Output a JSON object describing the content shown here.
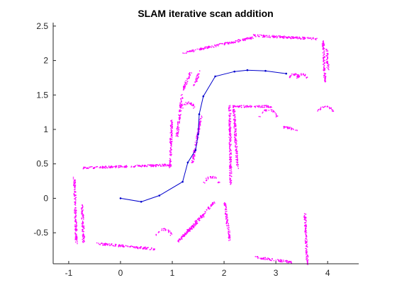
{
  "chart_data": {
    "type": "scatter",
    "title": "SLAM iterative scan addition",
    "xlabel": "",
    "ylabel": "",
    "xlim": [
      -1.3,
      4.6
    ],
    "ylim": [
      -0.95,
      2.55
    ],
    "xticks": [
      -1,
      0,
      1,
      2,
      3,
      4
    ],
    "yticks": [
      -0.5,
      0,
      0.5,
      1,
      1.5,
      2,
      2.5
    ],
    "grid": false,
    "legend": "none",
    "colors": {
      "scan": "#ff00ff",
      "trajectory": "#0000cc",
      "axes": "#262626"
    },
    "trajectory": {
      "x": [
        0.0,
        0.4,
        0.75,
        1.2,
        1.3,
        1.45,
        1.5,
        1.52,
        1.6,
        1.83,
        2.2,
        2.45,
        2.8,
        3.2
      ],
      "y": [
        0.0,
        -0.05,
        0.04,
        0.24,
        0.52,
        0.7,
        0.93,
        1.22,
        1.48,
        1.77,
        1.84,
        1.86,
        1.85,
        1.81
      ]
    },
    "scan_segments": [
      {
        "x": [
          -0.72,
          0.95
        ],
        "y": [
          0.45,
          0.49
        ]
      },
      {
        "x": [
          -0.9,
          -0.86
        ],
        "y": [
          0.3,
          -0.65
        ]
      },
      {
        "x": [
          -0.75,
          -0.72
        ],
        "y": [
          -0.1,
          -0.65
        ]
      },
      {
        "x": [
          -0.45,
          0.65
        ],
        "y": [
          -0.65,
          -0.73
        ]
      },
      {
        "x": [
          0.95,
          0.98
        ],
        "y": [
          0.45,
          1.15
        ]
      },
      {
        "x": [
          1.08,
          1.18
        ],
        "y": [
          0.9,
          1.5
        ]
      },
      {
        "x": [
          1.2,
          2.55
        ],
        "y": [
          2.12,
          2.34
        ]
      },
      {
        "x": [
          2.55,
          3.8
        ],
        "y": [
          2.37,
          2.32
        ]
      },
      {
        "x": [
          3.9,
          3.94
        ],
        "y": [
          2.3,
          1.7
        ]
      },
      {
        "x": [
          3.97,
          4.0
        ],
        "y": [
          2.18,
          1.88
        ]
      },
      {
        "x": [
          2.1,
          2.12
        ],
        "y": [
          1.35,
          0.22
        ]
      },
      {
        "x": [
          2.18,
          2.25
        ],
        "y": [
          1.3,
          0.45
        ]
      },
      {
        "x": [
          2.15,
          2.9
        ],
        "y": [
          1.34,
          1.34
        ]
      },
      {
        "x": [
          1.38,
          1.55
        ],
        "y": [
          0.52,
          1.2
        ]
      },
      {
        "x": [
          1.1,
          1.8
        ],
        "y": [
          -0.62,
          -0.05
        ]
      },
      {
        "x": [
          1.2,
          1.6
        ],
        "y": [
          -0.55,
          -0.25
        ]
      },
      {
        "x": [
          2.0,
          2.1
        ],
        "y": [
          -0.05,
          -0.6
        ]
      },
      {
        "x": [
          2.6,
          3.3
        ],
        "y": [
          -0.85,
          -0.92
        ]
      },
      {
        "x": [
          3.55,
          3.6
        ],
        "y": [
          -0.2,
          -0.95
        ]
      },
      {
        "x": [
          3.15,
          3.4
        ],
        "y": [
          1.04,
          1.0
        ]
      },
      {
        "x": [
          1.2,
          1.35
        ],
        "y": [
          1.58,
          1.85
        ]
      },
      {
        "x": [
          1.42,
          1.52
        ],
        "y": [
          1.65,
          1.85
        ]
      }
    ],
    "scan_arcs": [
      {
        "cx": 2.85,
        "cy": 1.16,
        "r": 0.17
      },
      {
        "cx": 3.95,
        "cy": 1.24,
        "r": 0.14
      },
      {
        "cx": 1.75,
        "cy": 0.21,
        "r": 0.14
      },
      {
        "cx": 0.83,
        "cy": -0.55,
        "r": 0.14
      },
      {
        "cx": 1.3,
        "cy": 1.3,
        "r": 0.12
      },
      {
        "cx": 3.35,
        "cy": 1.74,
        "r": 0.09
      },
      {
        "cx": 3.5,
        "cy": 1.74,
        "r": 0.09
      }
    ]
  }
}
